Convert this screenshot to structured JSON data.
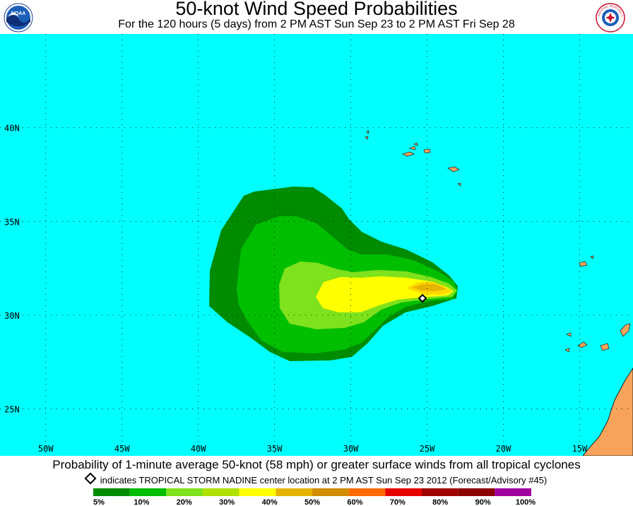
{
  "header": {
    "title": "50-knot Wind Speed Probabilities",
    "subtitle": "For the 120 hours (5 days) from 2 PM AST Sun Sep 23 to 2 PM AST Fri Sep 28"
  },
  "logos": {
    "left": {
      "icon": "noaa-logo-icon",
      "text": "NOAA"
    },
    "right": {
      "icon": "nws-logo-icon",
      "text": "NATIONAL WEATHER SERVICE"
    }
  },
  "map": {
    "lon_range": [
      -53,
      -11.5
    ],
    "lat_range": [
      22.5,
      45
    ],
    "ocean_color": "#00ffff",
    "land_color": "#f7a35c",
    "lat_labels": [
      "40N",
      "35N",
      "30N",
      "25N"
    ],
    "lon_labels": [
      "50W",
      "45W",
      "40W",
      "35W",
      "30W",
      "25W",
      "20W",
      "15W"
    ],
    "storm_center": {
      "lon": -25.3,
      "lat": 30.9
    },
    "probability_contours": [
      {
        "level": "5%",
        "color": "#008c00"
      },
      {
        "level": "10%",
        "color": "#00be00"
      },
      {
        "level": "20%",
        "color": "#7ee21c"
      },
      {
        "level": "30%",
        "color": "#ffff00"
      },
      {
        "level": "40%",
        "color": "#ffd700"
      },
      {
        "level": "50%",
        "color": "#e6b400"
      }
    ]
  },
  "caption": {
    "line1": "Probability of 1-minute average 50-knot (58 mph) or greater surface winds from all tropical cyclones",
    "line2": "indicates TROPICAL STORM NADINE center location at 2 PM AST Sun Sep 23 2012 (Forecast/Advisory #45)"
  },
  "legend": {
    "colors": [
      "#008c00",
      "#00be00",
      "#7ee21c",
      "#b0e000",
      "#ffff00",
      "#e6b400",
      "#d28c00",
      "#ff6a00",
      "#e60000",
      "#a00000",
      "#8c0000",
      "#a000a0"
    ],
    "labels": [
      "5%",
      "10%",
      "20%",
      "30%",
      "40%",
      "50%",
      "60%",
      "70%",
      "80%",
      "90%",
      "100%"
    ]
  }
}
